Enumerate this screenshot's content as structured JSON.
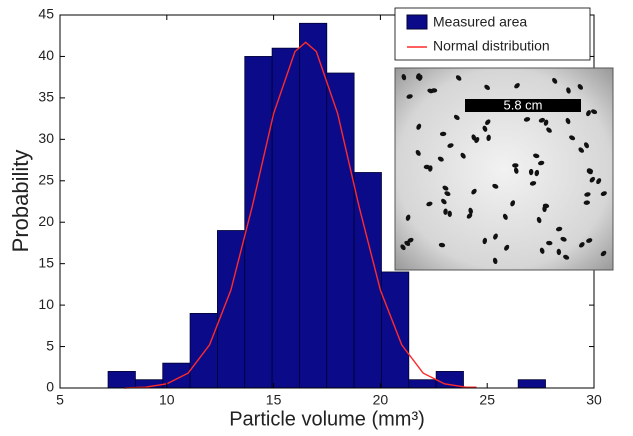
{
  "chart_data": {
    "type": "histogram",
    "x_label": "Particle volume (mm³)",
    "y_label": "Probability",
    "bins": [
      7.25,
      8.53,
      9.81,
      11.09,
      12.37,
      13.65,
      14.93,
      16.21,
      17.49,
      18.77,
      20.05,
      21.33,
      22.61,
      23.89,
      25.17,
      26.45,
      27.73
    ],
    "series": [
      {
        "name": "Measured area",
        "color": "#0b0b8a",
        "values": [
          2,
          1,
          3,
          9,
          19,
          40,
          41,
          44,
          38,
          26,
          14,
          1,
          2,
          0,
          0,
          1
        ]
      },
      {
        "name": "Normal distribution",
        "color": "#ff2a2a",
        "x": [
          8,
          9,
          10,
          11,
          12,
          13,
          14,
          15,
          16,
          16.5,
          17,
          18,
          19,
          20,
          21,
          22,
          23,
          24,
          24.5
        ],
        "values": [
          0.0,
          0.1,
          0.5,
          1.8,
          5.2,
          11.8,
          21.9,
          33.1,
          40.6,
          41.7,
          40.6,
          33.1,
          21.9,
          11.8,
          5.2,
          1.8,
          0.5,
          0.1,
          0.1
        ]
      }
    ],
    "xlim": [
      5,
      30
    ],
    "xticks": [
      5,
      10,
      15,
      20,
      25,
      30
    ],
    "ylim": [
      0,
      45
    ],
    "yticks": [
      0,
      5,
      10,
      15,
      20,
      25,
      30,
      35,
      40,
      45
    ],
    "legend": "upper right",
    "inset_label": "5.8 cm"
  }
}
